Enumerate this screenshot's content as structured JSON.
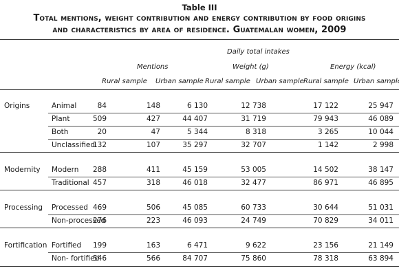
{
  "table_label": "Table III",
  "caption_line1": "Total mentions, weight contribution and energy contribution by food origins",
  "caption_line2": "and characteristics by area of residence. Guatemalan women, 2009",
  "headers": {
    "daily_total_intakes": "Daily total intakes",
    "mentions": "Mentions",
    "weight": "Weight (g)",
    "energy": "Energy (kcal)",
    "cols": [
      "Rural sample",
      "Urban sample",
      "Rural sample",
      "Urban sample",
      "Rural sample",
      "Urban sample"
    ]
  },
  "groups": [
    {
      "label": "Origins",
      "rows": [
        {
          "label": "Animal",
          "values": [
            "84",
            "148",
            "6 130",
            "12 738",
            "17 122",
            "25 947"
          ]
        },
        {
          "label": "Plant",
          "values": [
            "509",
            "427",
            "44 407",
            "31 719",
            "79 943",
            "46 089"
          ]
        },
        {
          "label": "Both",
          "values": [
            "20",
            "47",
            "5 344",
            "8 318",
            "3 265",
            "10 044"
          ]
        },
        {
          "label": "Unclassified",
          "values": [
            "132",
            "107",
            "35 297",
            "32 707",
            "1 142",
            "2 998"
          ]
        }
      ]
    },
    {
      "label": "Modernity",
      "rows": [
        {
          "label": "Modern",
          "values": [
            "288",
            "411",
            "45 159",
            "53 005",
            "14 502",
            "38 147"
          ]
        },
        {
          "label": "Traditional",
          "values": [
            "457",
            "318",
            "46 018",
            "32 477",
            "86 971",
            "46 895"
          ]
        }
      ]
    },
    {
      "label": "Processing",
      "rows": [
        {
          "label": "Processed",
          "values": [
            "469",
            "506",
            "45 085",
            "60 733",
            "30 644",
            "51 031"
          ]
        },
        {
          "label": "Non-processed",
          "values": [
            "276",
            "223",
            "46 093",
            "24 749",
            "70 829",
            "34 011"
          ]
        }
      ]
    },
    {
      "label": "Fortification",
      "rows": [
        {
          "label": "Fortified",
          "values": [
            "199",
            "163",
            "6 471",
            "9 622",
            "23 156",
            "21 149"
          ]
        },
        {
          "label": "Non- fortified",
          "values": [
            "546",
            "566",
            "84 707",
            "75 860",
            "78 318",
            "63 894"
          ]
        }
      ]
    }
  ]
}
